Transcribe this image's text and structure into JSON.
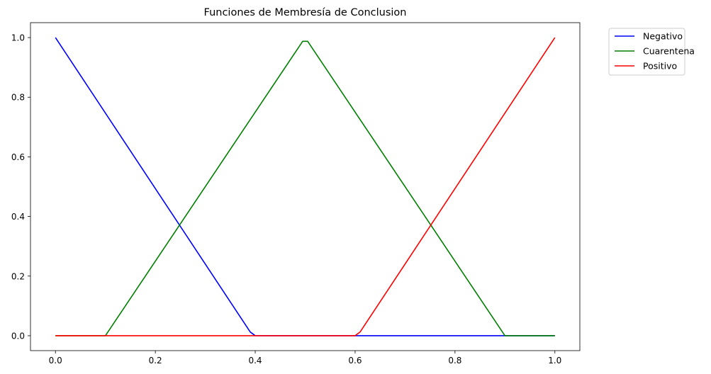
{
  "chart_data": {
    "type": "line",
    "title": "Funciones de Membresía de Conclusion",
    "xlabel": "",
    "ylabel": "",
    "xlim": [
      -0.05,
      1.05
    ],
    "ylim": [
      -0.05,
      1.05
    ],
    "xticks": [
      0.0,
      0.2,
      0.4,
      0.6,
      0.8,
      1.0
    ],
    "xtick_labels": [
      "0.0",
      "0.2",
      "0.4",
      "0.6",
      "0.8",
      "1.0"
    ],
    "yticks": [
      0.0,
      0.2,
      0.4,
      0.6,
      0.8,
      1.0
    ],
    "ytick_labels": [
      "0.0",
      "0.2",
      "0.4",
      "0.6",
      "0.8",
      "1.0"
    ],
    "grid": false,
    "legend_position": "outside upper right",
    "series": [
      {
        "name": "Negativo",
        "color": "#0000ff",
        "x": [
          0.0,
          0.39,
          0.4,
          1.0
        ],
        "y": [
          1.0,
          0.0125,
          0.0,
          0.0
        ]
      },
      {
        "name": "Cuarentena",
        "color": "#008000",
        "x": [
          0.0,
          0.1,
          0.495,
          0.505,
          0.9,
          0.91,
          1.0
        ],
        "y": [
          0.0,
          0.0,
          0.9875,
          0.9875,
          0.0,
          0.0,
          0.0
        ]
      },
      {
        "name": "Positivo",
        "color": "#ff0000",
        "x": [
          0.0,
          0.6,
          0.61,
          1.0
        ],
        "y": [
          0.0,
          0.0,
          0.0125,
          1.0
        ]
      }
    ]
  }
}
